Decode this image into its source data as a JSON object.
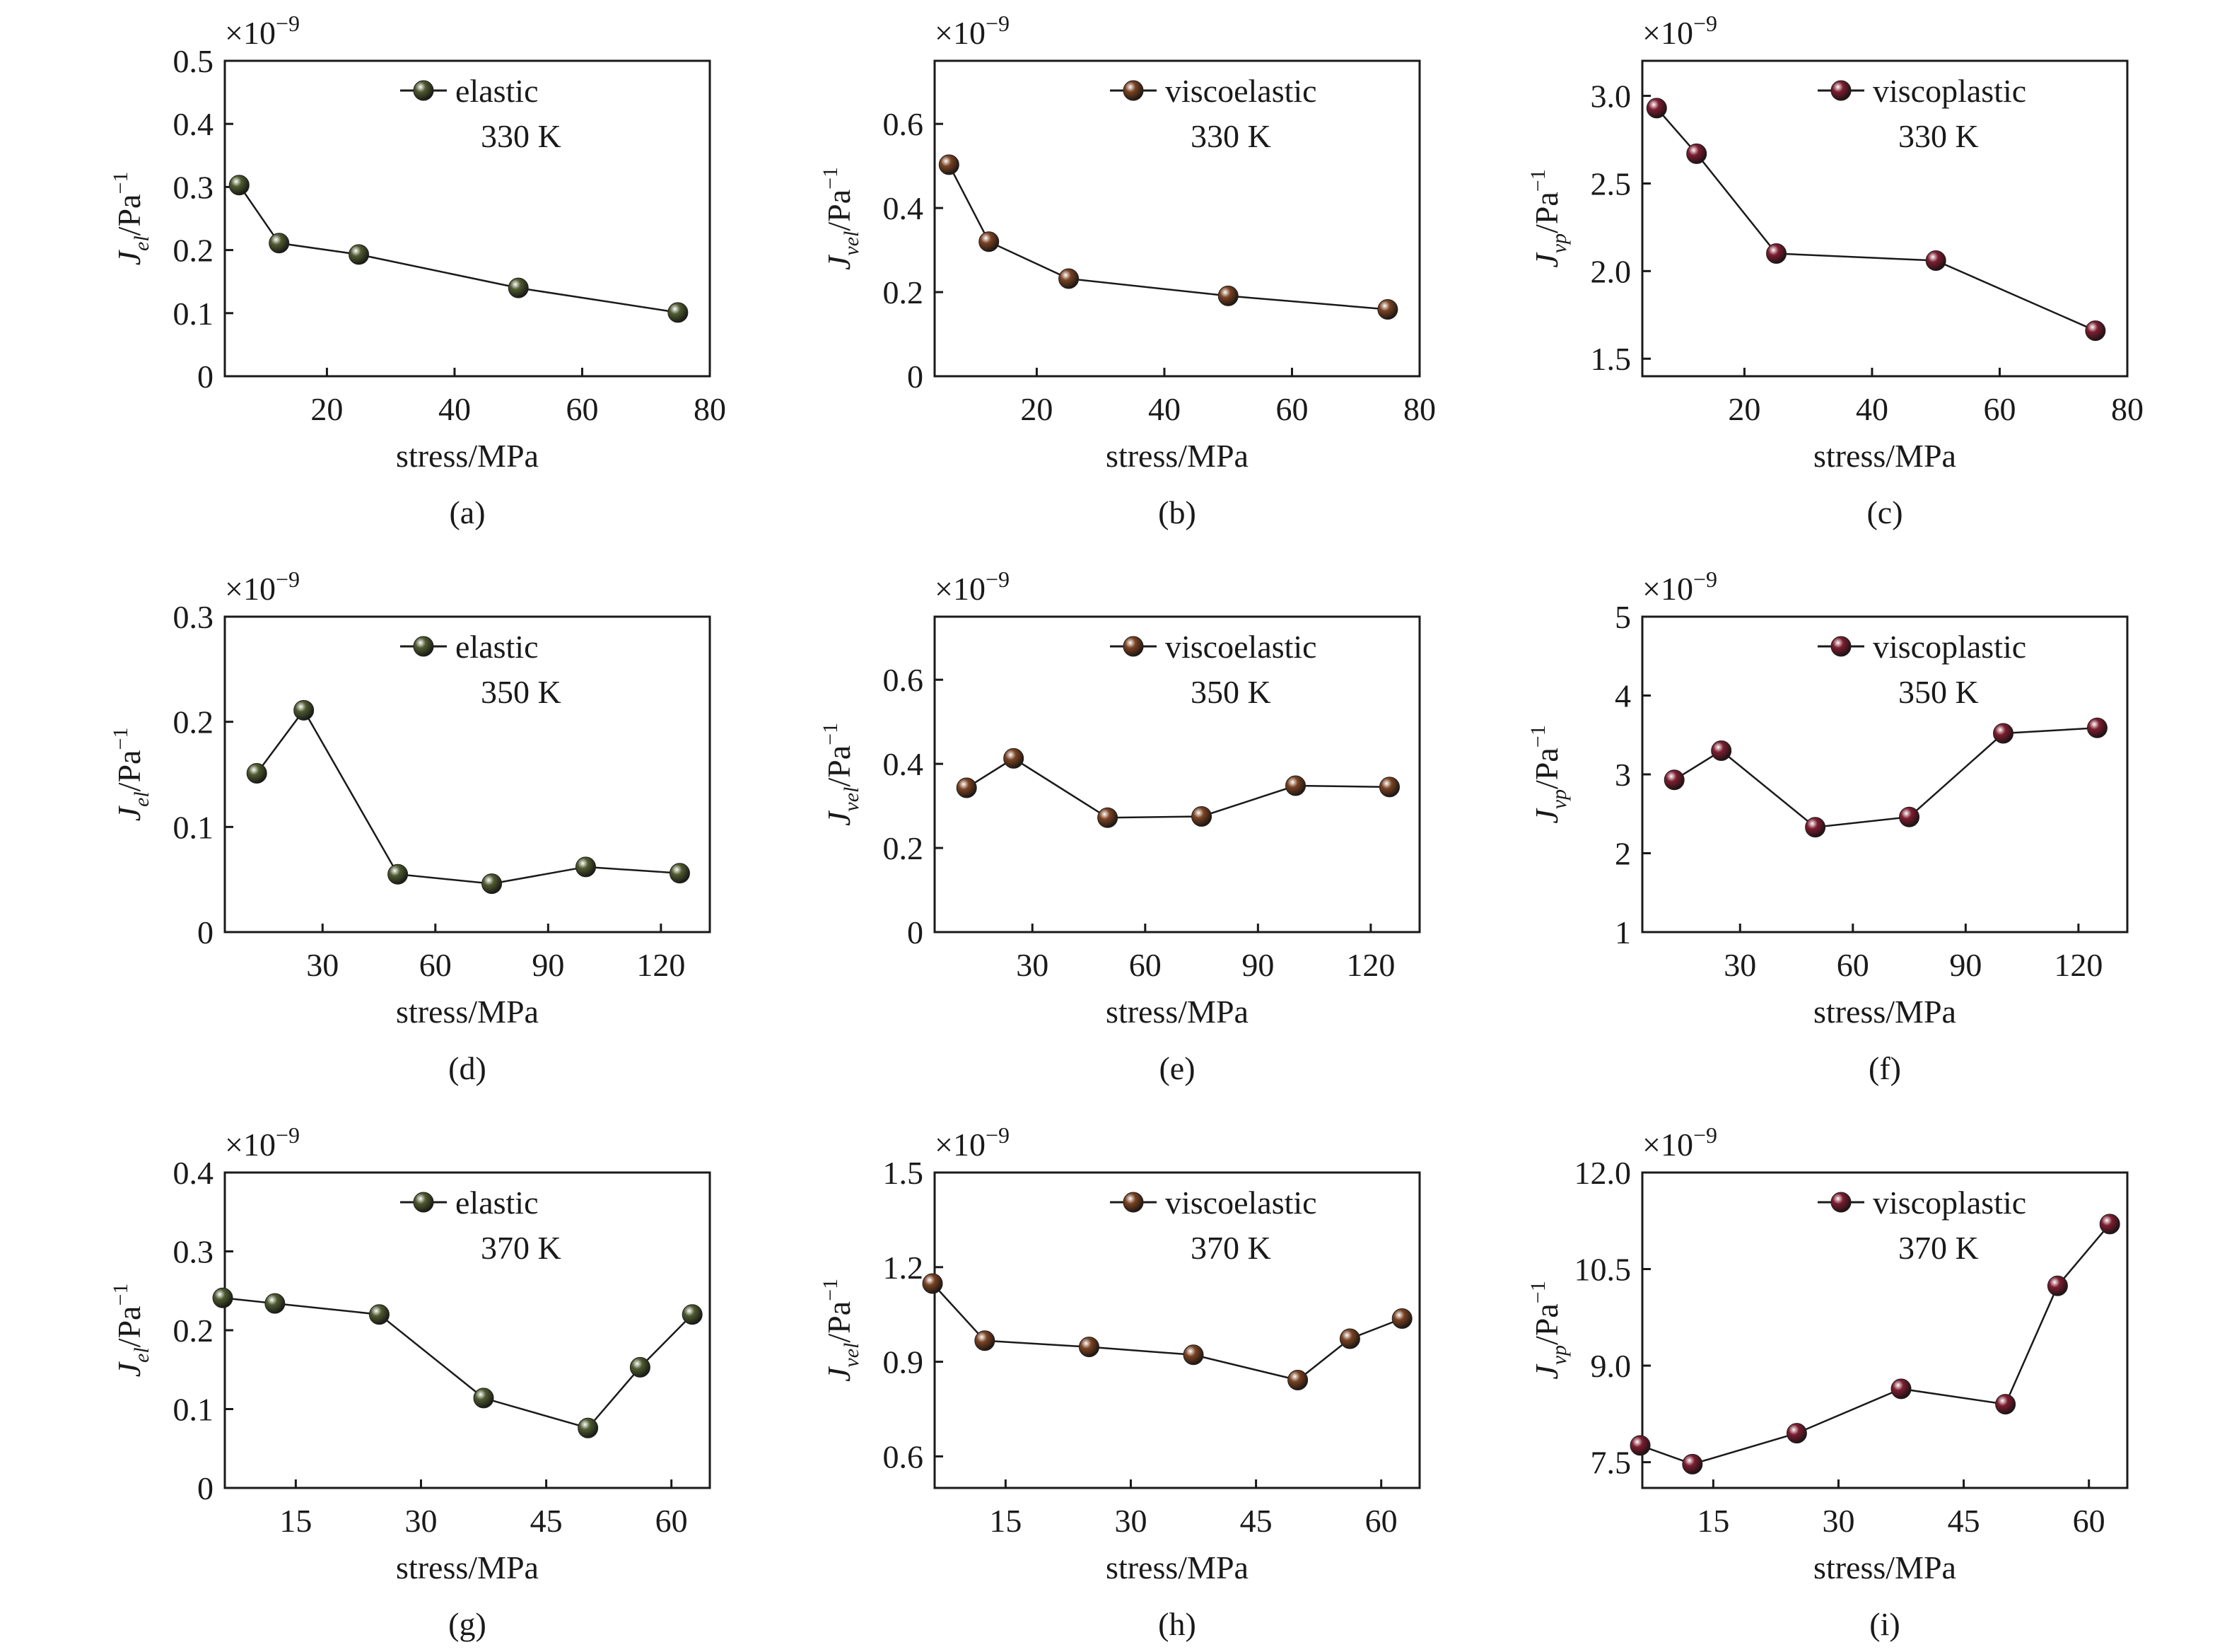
{
  "figure": {
    "xlabel": "stress/MPa",
    "multiplier_base": "×10",
    "multiplier_exp": "−9",
    "ylabel_base": "J",
    "ylabel_unit": "/Pa",
    "ylabel_unit_exp": "−1"
  },
  "colors": {
    "elastic": "#4f5a30",
    "viscoelastic": "#7a4222",
    "viscoplastic": "#7d1d30",
    "line": "#1a1a1a"
  },
  "chart_data": [
    {
      "type": "line",
      "panel": "(a)",
      "series": [
        {
          "name": "elastic",
          "x": [
            6.25,
            12.5,
            25,
            50,
            75
          ],
          "values": [
            0.303,
            0.211,
            0.193,
            0.14,
            0.101
          ]
        }
      ],
      "temperature": "330 K",
      "xlabel": "stress/MPa",
      "ylabel": "J_el/Pa^-1",
      "ylabel_sub": "el",
      "xlim": [
        4,
        80
      ],
      "ylim": [
        0,
        0.5
      ],
      "xticks": [
        20,
        40,
        60,
        80
      ],
      "yticks": [
        "0",
        "0.1",
        "0.2",
        "0.3",
        "0.4",
        "0.5"
      ],
      "yscale": "×10^-9",
      "color_key": "elastic"
    },
    {
      "type": "line",
      "panel": "(b)",
      "series": [
        {
          "name": "viscoelastic",
          "x": [
            6.25,
            12.5,
            25,
            50,
            75
          ],
          "values": [
            0.503,
            0.32,
            0.232,
            0.191,
            0.159
          ]
        }
      ],
      "temperature": "330 K",
      "xlabel": "stress/MPa",
      "ylabel": "J_vel/Pa^-1",
      "ylabel_sub": "vel",
      "xlim": [
        4,
        80
      ],
      "ylim": [
        0,
        0.75
      ],
      "xticks": [
        20,
        40,
        60,
        80
      ],
      "yticks": [
        "0",
        "0.2",
        "0.4",
        "0.6"
      ],
      "yscale": "×10^-9",
      "color_key": "viscoelastic"
    },
    {
      "type": "line",
      "panel": "(c)",
      "series": [
        {
          "name": "viscoplastic",
          "x": [
            6.25,
            12.5,
            25,
            50,
            75
          ],
          "values": [
            2.93,
            2.67,
            2.1,
            2.06,
            1.66
          ]
        }
      ],
      "temperature": "330 K",
      "xlabel": "stress/MPa",
      "ylabel": "J_vp/Pa^-1",
      "ylabel_sub": "vp",
      "xlim": [
        4,
        80
      ],
      "ylim": [
        1.4,
        3.2
      ],
      "xticks": [
        20,
        40,
        60,
        80
      ],
      "yticks": [
        "1.5",
        "2.0",
        "2.5",
        "3.0"
      ],
      "yscale": "×10^-9",
      "color_key": "viscoplastic"
    },
    {
      "type": "line",
      "panel": "(d)",
      "series": [
        {
          "name": "elastic",
          "x": [
            12.5,
            25,
            50,
            75,
            100,
            125
          ],
          "values": [
            0.151,
            0.211,
            0.055,
            0.046,
            0.062,
            0.056
          ]
        }
      ],
      "temperature": "350 K",
      "xlabel": "stress/MPa",
      "ylabel": "J_el/Pa^-1",
      "ylabel_sub": "el",
      "xlim": [
        4,
        133
      ],
      "ylim": [
        0,
        0.3
      ],
      "xticks": [
        30,
        60,
        90,
        120
      ],
      "yticks": [
        "0",
        "0.1",
        "0.2",
        "0.3"
      ],
      "yscale": "×10^-9",
      "color_key": "elastic"
    },
    {
      "type": "line",
      "panel": "(e)",
      "series": [
        {
          "name": "viscoelastic",
          "x": [
            12.5,
            25,
            50,
            75,
            100,
            125
          ],
          "values": [
            0.343,
            0.413,
            0.272,
            0.275,
            0.348,
            0.345
          ]
        }
      ],
      "temperature": "350 K",
      "xlabel": "stress/MPa",
      "ylabel": "J_vel/Pa^-1",
      "ylabel_sub": "vel",
      "xlim": [
        4,
        133
      ],
      "ylim": [
        0,
        0.75
      ],
      "xticks": [
        30,
        60,
        90,
        120
      ],
      "yticks": [
        "0",
        "0.2",
        "0.4",
        "0.6"
      ],
      "yscale": "×10^-9",
      "color_key": "viscoelastic"
    },
    {
      "type": "line",
      "panel": "(f)",
      "series": [
        {
          "name": "viscoplastic",
          "x": [
            12.5,
            25,
            50,
            75,
            100,
            125
          ],
          "values": [
            2.93,
            3.3,
            2.33,
            2.46,
            3.52,
            3.59
          ]
        }
      ],
      "temperature": "350 K",
      "xlabel": "stress/MPa",
      "ylabel": "J_vp/Pa^-1",
      "ylabel_sub": "vp",
      "xlim": [
        4,
        133
      ],
      "ylim": [
        1,
        5
      ],
      "xticks": [
        30,
        60,
        90,
        120
      ],
      "yticks": [
        "1",
        "2",
        "3",
        "4",
        "5"
      ],
      "yscale": "×10^-9",
      "color_key": "viscoplastic"
    },
    {
      "type": "line",
      "panel": "(g)",
      "series": [
        {
          "name": "elastic",
          "x": [
            6.25,
            12.5,
            25,
            37.5,
            50,
            56.25,
            62.5
          ],
          "values": [
            0.241,
            0.234,
            0.22,
            0.114,
            0.076,
            0.153,
            0.22
          ]
        }
      ],
      "temperature": "370 K",
      "xlabel": "stress/MPa",
      "ylabel": "J_el/Pa^-1",
      "ylabel_sub": "el",
      "xlim": [
        6.5,
        64.6
      ],
      "ylim": [
        0,
        0.4
      ],
      "xticks": [
        15,
        30,
        45,
        60
      ],
      "yticks": [
        "0",
        "0.1",
        "0.2",
        "0.3",
        "0.4"
      ],
      "yscale": "×10^-9",
      "color_key": "elastic"
    },
    {
      "type": "line",
      "panel": "(h)",
      "series": [
        {
          "name": "viscoelastic",
          "x": [
            6.25,
            12.5,
            25,
            37.5,
            50,
            56.25,
            62.5
          ],
          "values": [
            1.148,
            0.967,
            0.947,
            0.922,
            0.842,
            0.973,
            1.037
          ]
        }
      ],
      "temperature": "370 K",
      "xlabel": "stress/MPa",
      "ylabel": "J_vel/Pa^-1",
      "ylabel_sub": "vel",
      "xlim": [
        6.5,
        64.6
      ],
      "ylim": [
        0.5,
        1.5
      ],
      "xticks": [
        15,
        30,
        45,
        60
      ],
      "yticks": [
        "0.6",
        "0.9",
        "1.2",
        "1.5"
      ],
      "yscale": "×10^-9",
      "color_key": "viscoelastic"
    },
    {
      "type": "line",
      "panel": "(i)",
      "series": [
        {
          "name": "viscoplastic",
          "x": [
            6.25,
            12.5,
            25,
            37.5,
            50,
            56.25,
            62.5
          ],
          "values": [
            7.76,
            7.47,
            7.95,
            8.64,
            8.4,
            10.24,
            11.2
          ]
        }
      ],
      "temperature": "370 K",
      "xlabel": "stress/MPa",
      "ylabel": "J_vp/Pa^-1",
      "ylabel_sub": "vp",
      "xlim": [
        6.5,
        64.6
      ],
      "ylim": [
        7.1,
        12
      ],
      "xticks": [
        15,
        30,
        45,
        60
      ],
      "yticks": [
        "7.5",
        "9.0",
        "10.5",
        "12.0"
      ],
      "yscale": "×10^-9",
      "color_key": "viscoplastic"
    }
  ]
}
